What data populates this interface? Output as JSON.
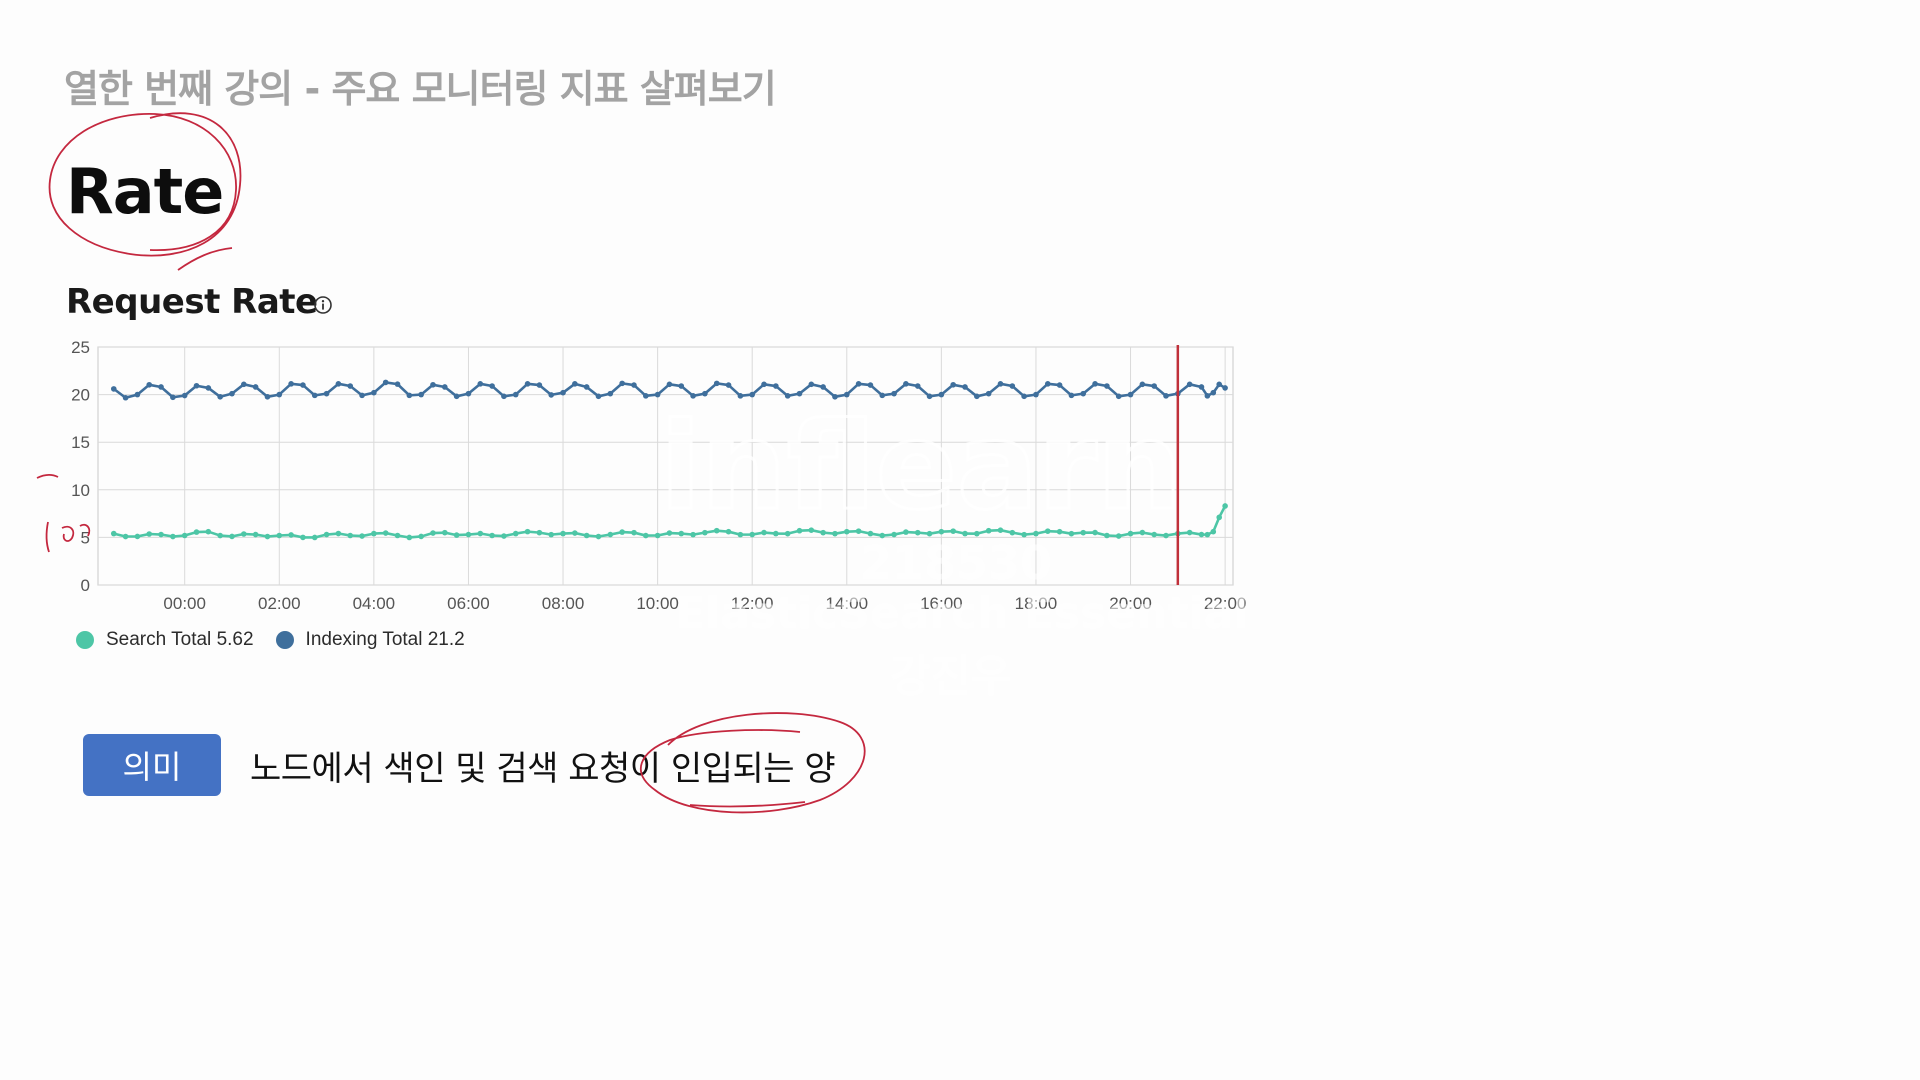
{
  "slide": {
    "lecture_title": "열한 번째 강의 - 주요 모니터링 지표 살펴보기",
    "section_heading": "Rate",
    "meaning_badge": "의미",
    "meaning_text": "노드에서 색인 및 검색 요청이 인입되는 양"
  },
  "watermark": {
    "logo": "inflearn",
    "user_id": "218530",
    "course": "ElasticSearch Essential",
    "author": "강진우"
  },
  "icons": {
    "info": "info-icon"
  },
  "colors": {
    "search_total": "#4dc6a6",
    "indexing_total": "#3f6f9c",
    "time_marker": "#c0303a",
    "annotation_ink": "#c4283f",
    "badge": "#4472c4"
  },
  "chart_data": {
    "type": "line",
    "title": "Request Rate",
    "x": [
      "22:30",
      "23:00",
      "23:30",
      "00:00",
      "00:30",
      "01:00",
      "01:30",
      "02:00",
      "02:30",
      "03:00",
      "03:30",
      "04:00",
      "04:30",
      "05:00",
      "05:30",
      "06:00",
      "06:30",
      "07:00",
      "07:30",
      "08:00",
      "08:30",
      "09:00",
      "09:30",
      "10:00",
      "10:30",
      "11:00",
      "11:30",
      "12:00",
      "12:30",
      "13:00",
      "13:30",
      "14:00",
      "14:30",
      "15:00",
      "15:30",
      "16:00",
      "16:30",
      "17:00",
      "17:30",
      "18:00",
      "18:30",
      "19:00",
      "19:30",
      "20:00",
      "20:30",
      "21:00",
      "21:30",
      "21:45",
      "22:00"
    ],
    "x_ticks": [
      "00:00",
      "02:00",
      "04:00",
      "06:00",
      "08:00",
      "10:00",
      "12:00",
      "14:00",
      "16:00",
      "18:00",
      "20:00",
      "22:00"
    ],
    "y_ticks": [
      0,
      5,
      10,
      15,
      20,
      25
    ],
    "ylim": [
      0,
      25
    ],
    "grid": true,
    "legend_position": "bottom-left",
    "series": [
      {
        "name": "Search Total",
        "legend_value": "5.62",
        "values": [
          5.4,
          5.1,
          5.3,
          5.2,
          5.6,
          5.1,
          5.3,
          5.2,
          5.0,
          5.3,
          5.2,
          5.4,
          5.2,
          5.1,
          5.5,
          5.3,
          5.2,
          5.4,
          5.5,
          5.4,
          5.2,
          5.3,
          5.5,
          5.2,
          5.4,
          5.5,
          5.6,
          5.3,
          5.4,
          5.7,
          5.5,
          5.6,
          5.4,
          5.3,
          5.5,
          5.6,
          5.4,
          5.7,
          5.5,
          5.4,
          5.6,
          5.5,
          5.2,
          5.4,
          5.3,
          5.4,
          5.3,
          5.6,
          8.3
        ]
      },
      {
        "name": "Indexing Total",
        "legend_value": "21.2",
        "values": [
          20.6,
          20.0,
          20.8,
          19.9,
          20.7,
          20.1,
          20.8,
          20.0,
          21.0,
          20.1,
          20.9,
          20.2,
          21.1,
          20.0,
          20.8,
          20.1,
          20.9,
          20.0,
          21.0,
          20.2,
          20.8,
          20.1,
          21.0,
          20.0,
          20.9,
          20.1,
          21.0,
          20.0,
          20.9,
          20.1,
          20.8,
          20.0,
          21.0,
          20.1,
          20.9,
          20.0,
          20.8,
          20.1,
          20.9,
          20.0,
          21.0,
          20.1,
          20.9,
          20.0,
          20.9,
          20.1,
          20.8,
          20.2,
          20.7
        ]
      }
    ],
    "marker_time": "21:00"
  }
}
